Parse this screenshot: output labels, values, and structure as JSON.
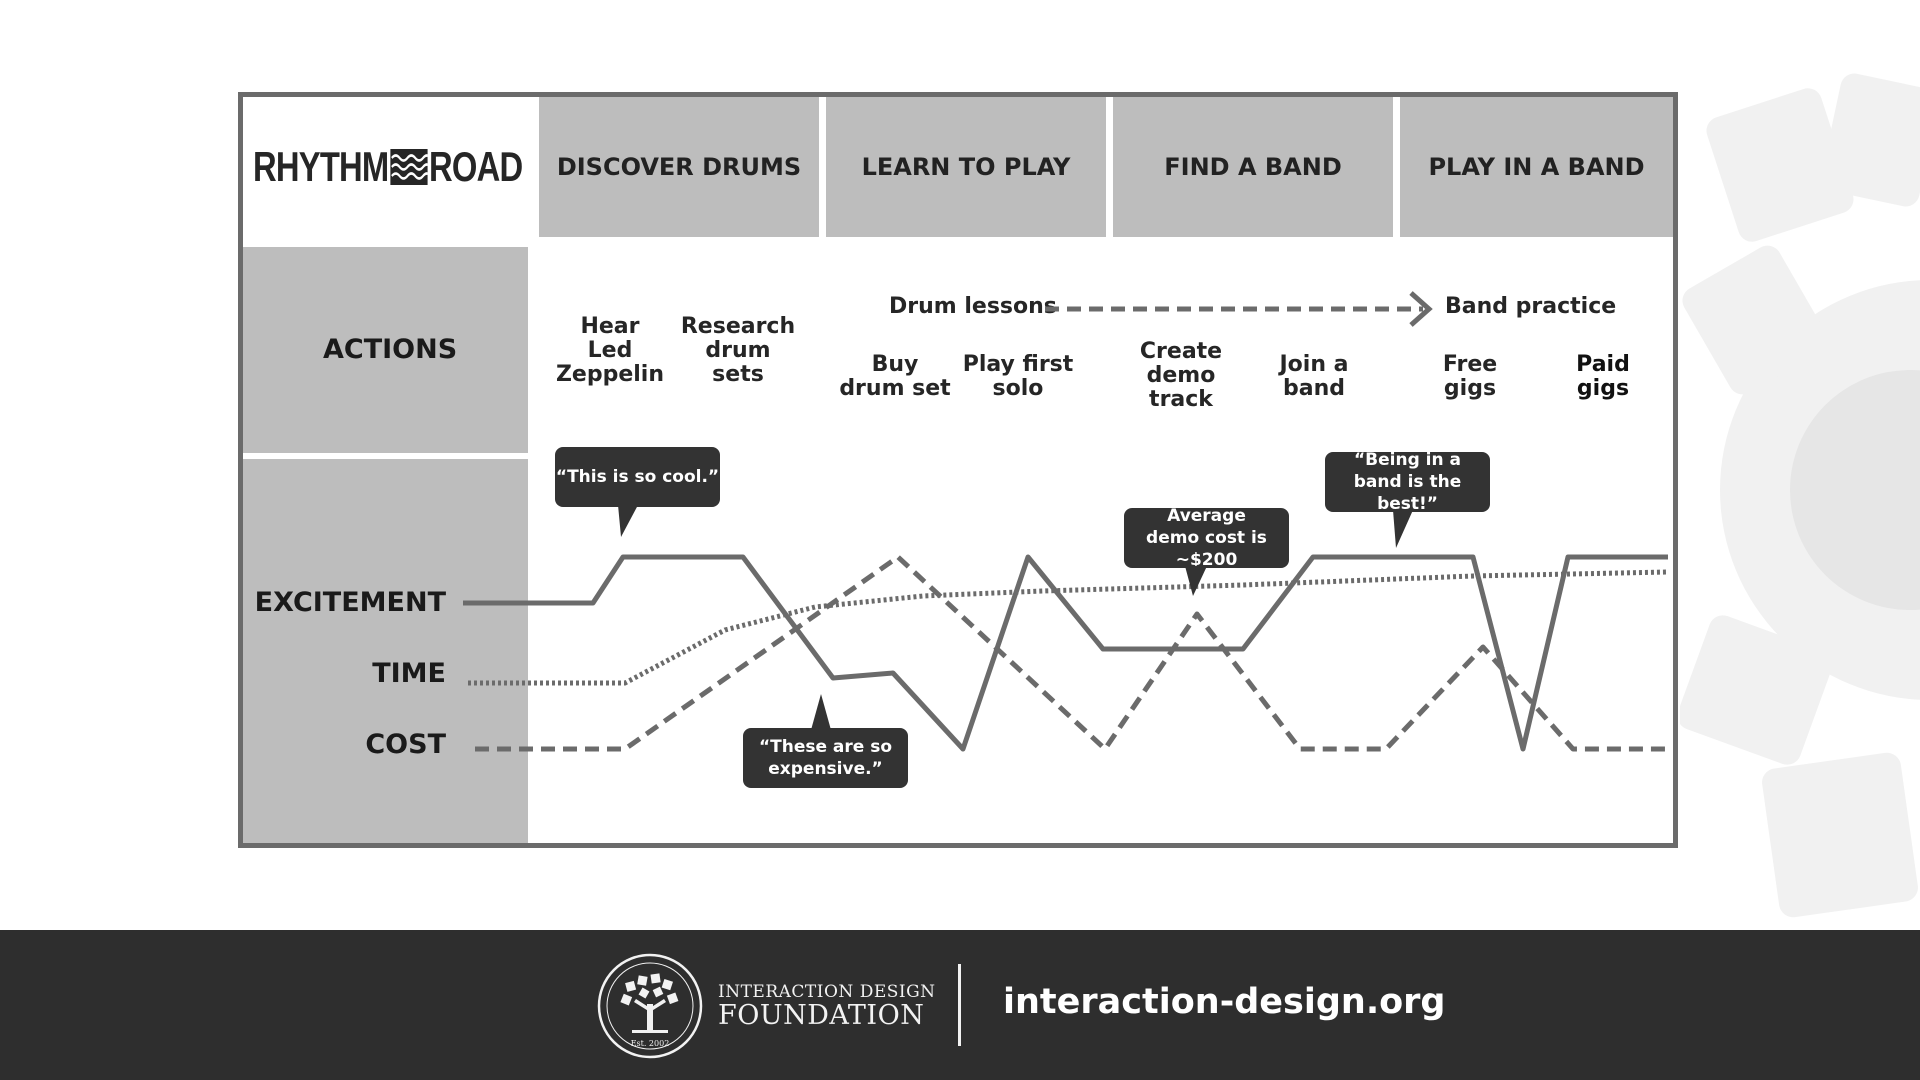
{
  "header": {
    "logo_left": "RHYTHM",
    "logo_right": "ROAD",
    "stages": [
      "DISCOVER DRUMS",
      "LEARN TO PLAY",
      "FIND A BAND",
      "PLAY IN A BAND"
    ]
  },
  "rows": {
    "actions": "ACTIONS"
  },
  "actions": [
    {
      "lines": [
        "Hear",
        "Led",
        "Zeppelin"
      ]
    },
    {
      "lines": [
        "Research",
        "drum",
        "sets"
      ]
    },
    {
      "lines": [
        "Buy",
        "drum set"
      ]
    },
    {
      "lines": [
        "Play first",
        "solo"
      ]
    },
    {
      "lines": [
        "Create",
        "demo",
        "track"
      ]
    },
    {
      "lines": [
        "Join a",
        "band"
      ]
    },
    {
      "lines": [
        "Free",
        "gigs"
      ]
    },
    {
      "lines": [
        "Paid",
        "gigs"
      ]
    }
  ],
  "flow": {
    "from": "Drum lessons",
    "to": "Band practice"
  },
  "metrics": [
    "EXCITEMENT",
    "TIME",
    "COST"
  ],
  "quotes": [
    {
      "text": "“This is so cool.”"
    },
    {
      "text": "“These are so expensive.”"
    },
    {
      "text": "Average demo cost is ~$200"
    },
    {
      "text": "“Being in a band is the best!”"
    }
  ],
  "colors": {
    "header_gray": "#bdbdbd",
    "line": "#6b6b6b",
    "bubble": "#333333",
    "footer": "#2e2e2e"
  },
  "footer": {
    "seal_text": "INTERACTION DESIGN FOUNDATION",
    "seal_est": "Est. 2002",
    "org_line1": "INTERACTION DESIGN",
    "org_line2": "FOUNDATION",
    "url": "interaction-design.org"
  }
}
